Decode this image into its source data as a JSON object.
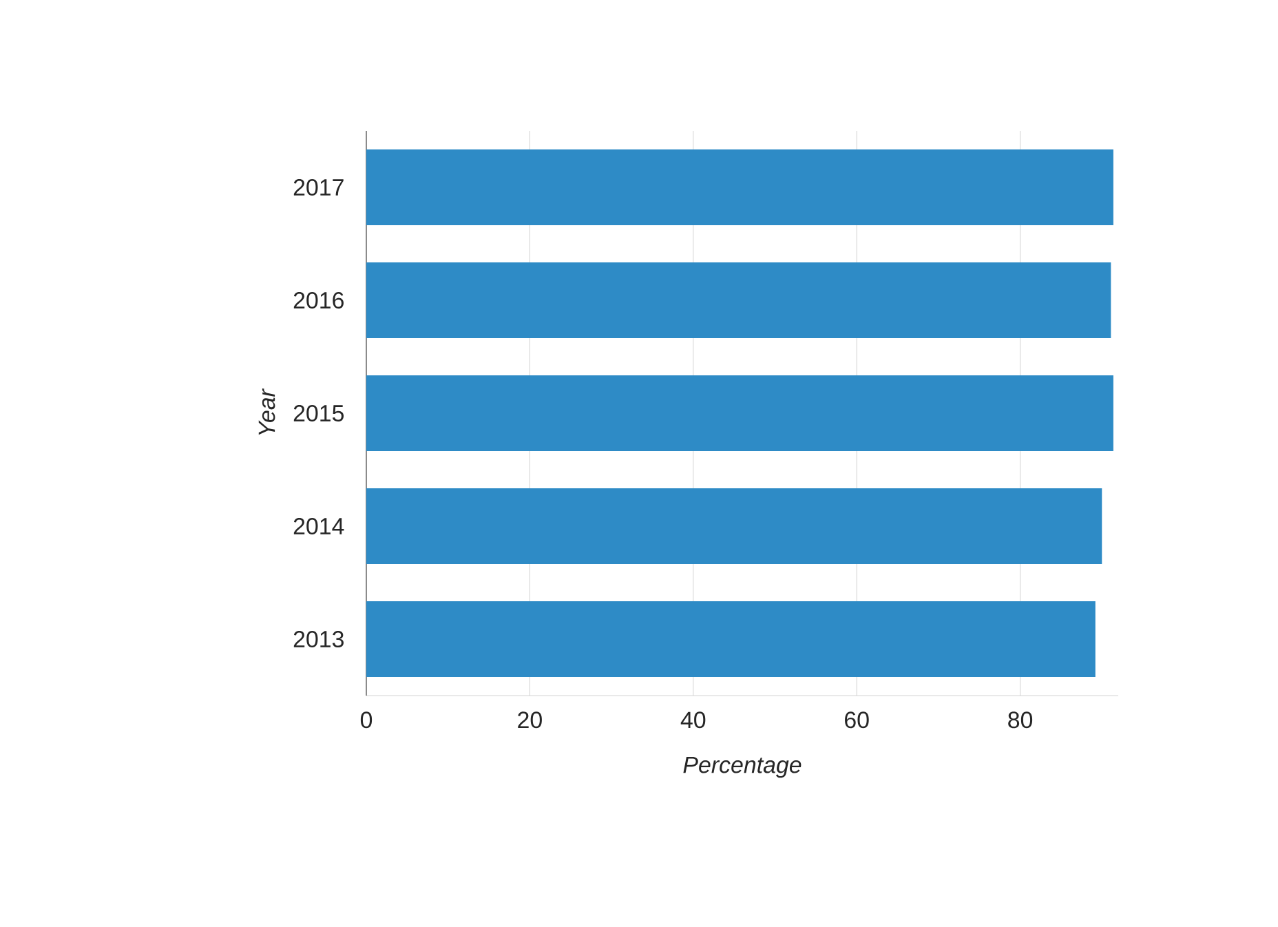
{
  "chart_data": {
    "type": "bar",
    "orientation": "horizontal",
    "xlabel": "Percentage",
    "ylabel": "Year",
    "categories": [
      "2017",
      "2016",
      "2015",
      "2014",
      "2013"
    ],
    "values": [
      91.4,
      91.1,
      91.4,
      90.0,
      89.2
    ],
    "color": "#2e8bc6",
    "xlim": [
      0,
      92
    ],
    "xticks": [
      0,
      20,
      40,
      60,
      80
    ],
    "grid": "x"
  }
}
